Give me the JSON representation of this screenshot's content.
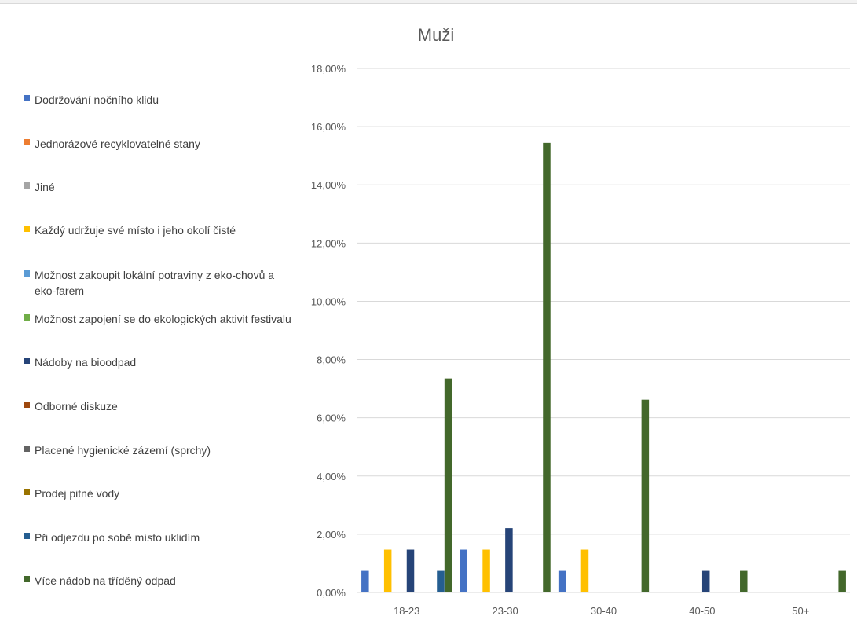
{
  "chart_data": {
    "type": "bar",
    "title": "Muži",
    "categories": [
      "18-23",
      "23-30",
      "30-40",
      "40-50",
      "50+"
    ],
    "yticks": [
      "0,00%",
      "2,00%",
      "4,00%",
      "6,00%",
      "8,00%",
      "10,00%",
      "12,00%",
      "14,00%",
      "16,00%",
      "18,00%"
    ],
    "ylim": [
      0,
      18
    ],
    "grid": true,
    "legend_position": "left",
    "series": [
      {
        "name": "Dodržování nočního klidu",
        "color": "#4472C4",
        "values": [
          0.74,
          1.47,
          0.74,
          0,
          0
        ]
      },
      {
        "name": "Jednorázové recyklovatelné stany",
        "color": "#ED7D31",
        "values": [
          0,
          0,
          0,
          0,
          0
        ]
      },
      {
        "name": "Jiné",
        "color": "#A5A5A5",
        "values": [
          0,
          0,
          0,
          0,
          0
        ]
      },
      {
        "name": "Každý udržuje své místo i jeho okolí čisté",
        "color": "#FFC000",
        "values": [
          1.47,
          1.47,
          1.47,
          0,
          0
        ]
      },
      {
        "name": "Možnost zakoupit lokální potraviny z eko-chovů a eko-farem",
        "color": "#5B9BD5",
        "values": [
          0,
          0,
          0,
          0,
          0
        ]
      },
      {
        "name": "Možnost zapojení se do ekologických aktivit festivalu",
        "color": "#70AD47",
        "values": [
          0,
          0,
          0,
          0,
          0
        ]
      },
      {
        "name": "Nádoby na bioodpad",
        "color": "#264478",
        "values": [
          1.47,
          2.21,
          0,
          0.74,
          0
        ]
      },
      {
        "name": "Odborné diskuze",
        "color": "#9E480E",
        "values": [
          0,
          0,
          0,
          0,
          0
        ]
      },
      {
        "name": "Placené hygienické zázemí (sprchy)",
        "color": "#636363",
        "values": [
          0,
          0,
          0,
          0,
          0
        ]
      },
      {
        "name": "Prodej pitné vody",
        "color": "#997300",
        "values": [
          0,
          0,
          0,
          0,
          0
        ]
      },
      {
        "name": "Při odjezdu po sobě místo uklidím",
        "color": "#255E91",
        "values": [
          0.74,
          0,
          0,
          0,
          0
        ]
      },
      {
        "name": "Více nádob na tříděný odpad",
        "color": "#43682B",
        "values": [
          7.35,
          15.44,
          6.62,
          0.74,
          0.74
        ]
      }
    ]
  }
}
